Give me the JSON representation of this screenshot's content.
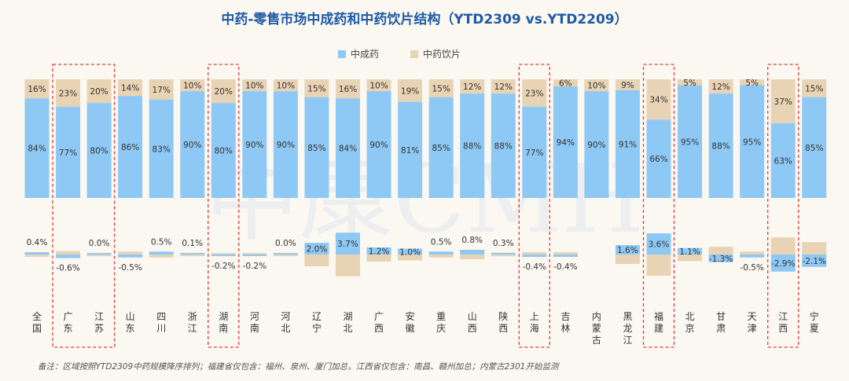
{
  "chart_data": {
    "type": "bar",
    "title": "中药-零售市场中成药和中药饮片结构（YTD2309 vs.YTD2209）",
    "legend": [
      "中成药",
      "中药饮片"
    ],
    "colors": {
      "tcm_patent": "#8ec9f5",
      "herbal_pieces": "#e8d3b4",
      "highlight": "#e03b3b"
    },
    "categories": [
      "全国",
      "广东",
      "江苏",
      "山东",
      "四川",
      "浙江",
      "湖南",
      "河南",
      "河北",
      "辽宁",
      "湖北",
      "广西",
      "安徽",
      "重庆",
      "山西",
      "陕西",
      "上海",
      "吉林",
      "内蒙古",
      "黑龙江",
      "福建",
      "北京",
      "甘肃",
      "天津",
      "江西",
      "宁夏"
    ],
    "highlighted": [
      "广东",
      "江苏",
      "湖南",
      "上海",
      "福建",
      "江西"
    ],
    "series": [
      {
        "name": "中成药",
        "unit": "%",
        "values": [
          84,
          77,
          80,
          86,
          83,
          90,
          80,
          90,
          90,
          85,
          84,
          90,
          81,
          85,
          88,
          88,
          77,
          94,
          90,
          91,
          66,
          95,
          88,
          95,
          63,
          85
        ]
      },
      {
        "name": "中药饮片",
        "unit": "%",
        "values": [
          16,
          23,
          20,
          14,
          17,
          10,
          20,
          10,
          10,
          15,
          16,
          10,
          19,
          15,
          12,
          12,
          23,
          6,
          10,
          9,
          34,
          5,
          12,
          5,
          37,
          15
        ]
      }
    ],
    "change": {
      "unit": "%",
      "values": [
        0.4,
        -0.6,
        0.0,
        -0.5,
        0.5,
        0.1,
        -0.2,
        -0.2,
        0.0,
        2.0,
        3.7,
        1.2,
        1.0,
        0.5,
        0.8,
        0.3,
        -0.4,
        -0.4,
        null,
        1.6,
        3.6,
        1.1,
        -1.3,
        -0.5,
        -2.9,
        -2.1
      ],
      "labels": [
        "0.4%",
        "-0.6%",
        "0.0%",
        "-0.5%",
        "0.5%",
        "0.1%",
        "-0.2%",
        "-0.2%",
        "0.0%",
        "2.0%",
        "3.7%",
        "1.2%",
        "1.0%",
        "0.5%",
        "0.8%",
        "0.3%",
        "-0.4%",
        "-0.4%",
        "",
        "1.6%",
        "3.6%",
        "1.1%",
        "-1.3%",
        "-0.5%",
        "-2.9%",
        "-2.1%"
      ]
    },
    "watermark": "中康CMH",
    "note": "备注：区域按照YTD2309中药规模降序排列；福建省仅包含：福州、泉州、厦门加总，江西省仅包含：南昌、赣州加总；内蒙古2301开始监测"
  }
}
